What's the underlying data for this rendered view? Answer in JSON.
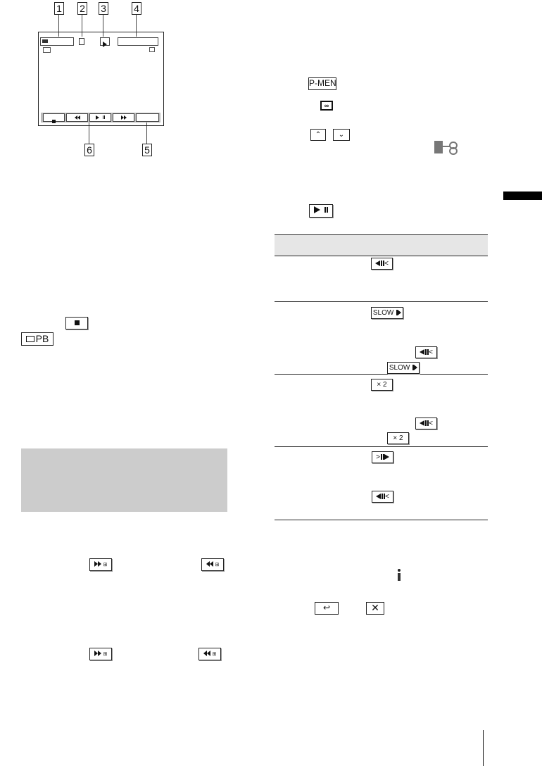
{
  "diagram": {
    "callouts": [
      "1",
      "2",
      "3",
      "4",
      "5",
      "6"
    ],
    "controls": [
      "stop-icon",
      "rewind-icon",
      "play-pause-icon",
      "fast-forward-icon"
    ]
  },
  "left": {
    "stop_icon": "stop-icon",
    "pb_label": "PB"
  },
  "right": {
    "pmenu_label": "P-MENU",
    "slow_label": "SLOW",
    "x2_label": "× 2"
  },
  "colors": {
    "section_bg": "#cccccc",
    "table_header_bg": "#e6e6e6",
    "side_tab": "#000000"
  }
}
